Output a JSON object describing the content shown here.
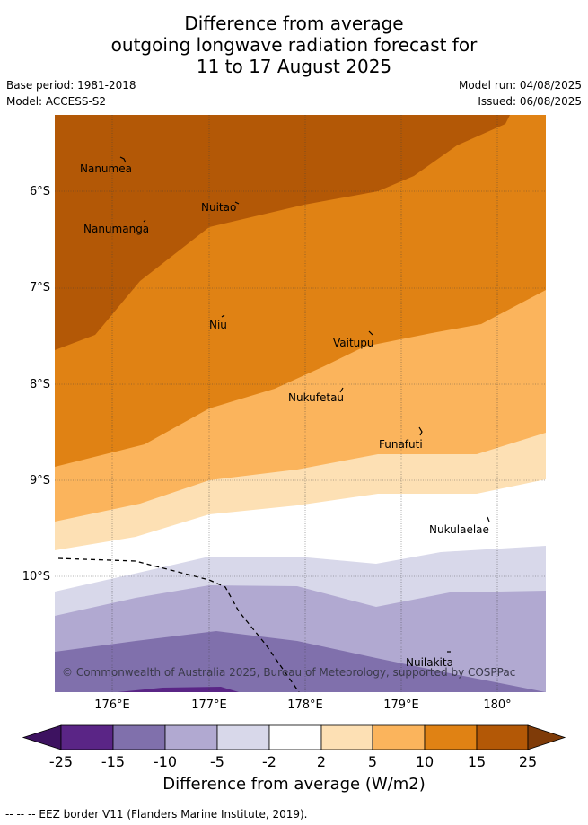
{
  "title": {
    "line1": "Difference from average",
    "line2": "outgoing longwave radiation forecast for",
    "line3": "11 to 17 August 2025"
  },
  "meta": {
    "base_period": "Base period: 1981-2018",
    "model": "Model: ACCESS-S2",
    "model_run": "Model run: 04/08/2025",
    "issued": "Issued: 06/08/2025"
  },
  "axes": {
    "lat_labels": [
      "6°S",
      "7°S",
      "8°S",
      "9°S",
      "10°S"
    ],
    "lon_labels": [
      "176°E",
      "177°E",
      "178°E",
      "179°E",
      "180°"
    ]
  },
  "places": [
    {
      "name": "Nanumea"
    },
    {
      "name": "Nuitao"
    },
    {
      "name": "Nanumanga"
    },
    {
      "name": "Niu"
    },
    {
      "name": "Vaitupu"
    },
    {
      "name": "Nukufetau"
    },
    {
      "name": "Funafuti"
    },
    {
      "name": "Nukulaelae"
    },
    {
      "name": "Nuilakita"
    }
  ],
  "copyright": "© Commonwealth of Australia 2025, Bureau of Meteorology, supported by COSPPac",
  "colorbar": {
    "title": "Difference from average (W/m2)",
    "labels": [
      "-25",
      "-15",
      "-10",
      "-5",
      "-2",
      "2",
      "5",
      "10",
      "15",
      "25"
    ],
    "colors": [
      "#3d1260",
      "#5a2586",
      "#8070ac",
      "#b1a9d1",
      "#d8d8ea",
      "#ffffff",
      "#fde0b4",
      "#fbb45c",
      "#e08214",
      "#b35806",
      "#7f3b08"
    ]
  },
  "eez_legend": "--  --  -- EEZ border V11 (Flanders Marine Institute, 2019)."
}
